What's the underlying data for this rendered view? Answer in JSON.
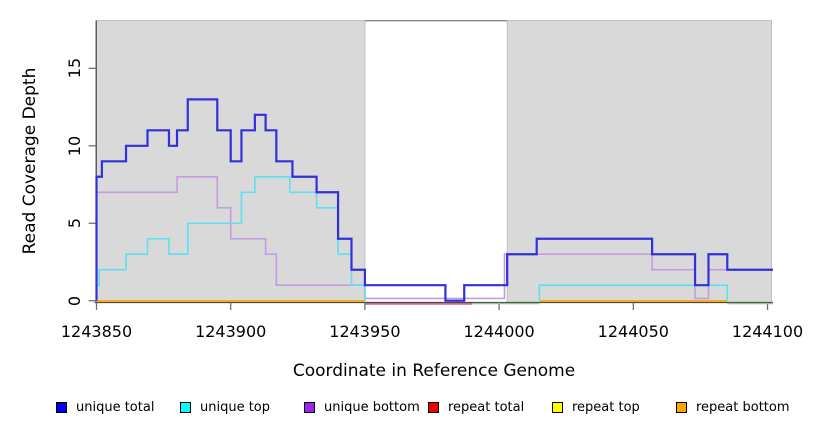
{
  "chart_data": {
    "type": "line",
    "subtype": "step-coverage",
    "title": "",
    "xlabel": "Coordinate in Reference Genome",
    "ylabel": "Read Coverage Depth",
    "xlim": [
      1243850,
      1244102
    ],
    "ylim": [
      0,
      18.09
    ],
    "grid": "off",
    "legend_position": "bottom",
    "x_ticks": [
      1243850,
      1243900,
      1243950,
      1244000,
      1244050,
      1244100
    ],
    "x_tick_labels": [
      "1243850",
      "1243900",
      "1243950",
      "1244000",
      "1244050",
      "1244100"
    ],
    "y_ticks": [
      0,
      5,
      10,
      15
    ],
    "y_tick_labels": [
      "0",
      "5",
      "10",
      "15"
    ],
    "shade_color": "#d9d9d9",
    "shade_border_color": "#b8b8b8",
    "gap_top_line_color": "#8a8a8a",
    "axis_color": "#4a4a4a",
    "tick_color": "#6e6e6e",
    "shaded_regions": [
      [
        1243850,
        1243950
      ],
      [
        1244003,
        1244101.5
      ]
    ],
    "series": [
      {
        "name": "unique total",
        "color": "#3030dd",
        "width": 2.2,
        "end": 1244102,
        "steps": [
          [
            1243850,
            8
          ],
          [
            1243852,
            9
          ],
          [
            1243861,
            10
          ],
          [
            1243869,
            11
          ],
          [
            1243877,
            10
          ],
          [
            1243880,
            11
          ],
          [
            1243884,
            13
          ],
          [
            1243895,
            11
          ],
          [
            1243900,
            9
          ],
          [
            1243904,
            11
          ],
          [
            1243909,
            12
          ],
          [
            1243913,
            11
          ],
          [
            1243917,
            9
          ],
          [
            1243923,
            8
          ],
          [
            1243932,
            7
          ],
          [
            1243940,
            4
          ],
          [
            1243945,
            2
          ],
          [
            1243950,
            1
          ],
          [
            1243980,
            0
          ],
          [
            1243987,
            1
          ],
          [
            1244003,
            3
          ],
          [
            1244014,
            4
          ],
          [
            1244057,
            3
          ],
          [
            1244073,
            1
          ],
          [
            1244078,
            3
          ],
          [
            1244085,
            2
          ]
        ]
      },
      {
        "name": "unique top",
        "color": "#5fdfef",
        "width": 1.6,
        "end": 1244102,
        "skip_zero": true,
        "steps": [
          [
            1243850,
            1
          ],
          [
            1243851,
            2
          ],
          [
            1243861,
            3
          ],
          [
            1243869,
            4
          ],
          [
            1243877,
            3
          ],
          [
            1243884,
            5
          ],
          [
            1243904,
            7
          ],
          [
            1243909,
            8
          ],
          [
            1243922,
            7
          ],
          [
            1243932,
            6
          ],
          [
            1243940,
            3
          ],
          [
            1243945,
            1
          ],
          [
            1243950,
            0
          ],
          [
            1244015,
            1
          ],
          [
            1244085,
            0
          ]
        ]
      },
      {
        "name": "unique bottom",
        "color": "#c49ce4",
        "width": 1.6,
        "end": 1244102,
        "zero_lift": 2.3,
        "steps": [
          [
            1243850,
            7
          ],
          [
            1243880,
            8
          ],
          [
            1243895,
            6
          ],
          [
            1243900,
            4
          ],
          [
            1243913,
            3
          ],
          [
            1243917,
            1
          ],
          [
            1243950,
            0
          ],
          [
            1244002,
            3
          ],
          [
            1244057,
            2
          ],
          [
            1244073,
            0
          ],
          [
            1244078,
            2
          ]
        ]
      },
      {
        "name": "repeat total",
        "color": "#c5486d",
        "width": 1.4,
        "end": 1244102,
        "draw": "baseline_overlay",
        "steps": [
          [
            1243850,
            0
          ]
        ]
      },
      {
        "name": "repeat top",
        "color": "#ffff00",
        "width": 1.4,
        "end": 1244102,
        "draw": "baseline_overlay",
        "steps": [
          [
            1243850,
            0
          ]
        ]
      },
      {
        "name": "repeat bottom",
        "color": "#ffa500",
        "width": 1.8,
        "end": 1244102,
        "draw": "baseline_overlay",
        "steps": [
          [
            1243850,
            0
          ]
        ]
      }
    ],
    "baseline_overlays": [
      {
        "color": "#c5486d",
        "from": 1243950,
        "to": 1243990,
        "dy": 3.2,
        "width": 1.4
      },
      {
        "color": "#85c993",
        "from": 1243990,
        "to": 1244015,
        "dy": 2.9,
        "width": 1.4
      },
      {
        "color": "#85c993",
        "from": 1244085,
        "to": 1244102,
        "dy": 2.9,
        "width": 1.4
      },
      {
        "color": "#ffa500",
        "from": 1243850,
        "to": 1243950,
        "dy": 0.3,
        "width": 1.8
      },
      {
        "color": "#ffa500",
        "from": 1244015,
        "to": 1244085,
        "dy": 0.3,
        "width": 1.8
      }
    ],
    "legend": [
      {
        "label": "unique total",
        "swatch": "#0000ee"
      },
      {
        "label": "unique top",
        "swatch": "#00ffff"
      },
      {
        "label": "unique bottom",
        "swatch": "#a020f0"
      },
      {
        "label": "repeat total",
        "swatch": "#ee0000"
      },
      {
        "label": "repeat top",
        "swatch": "#ffff00"
      },
      {
        "label": "repeat bottom",
        "swatch": "#ffa500"
      }
    ]
  }
}
